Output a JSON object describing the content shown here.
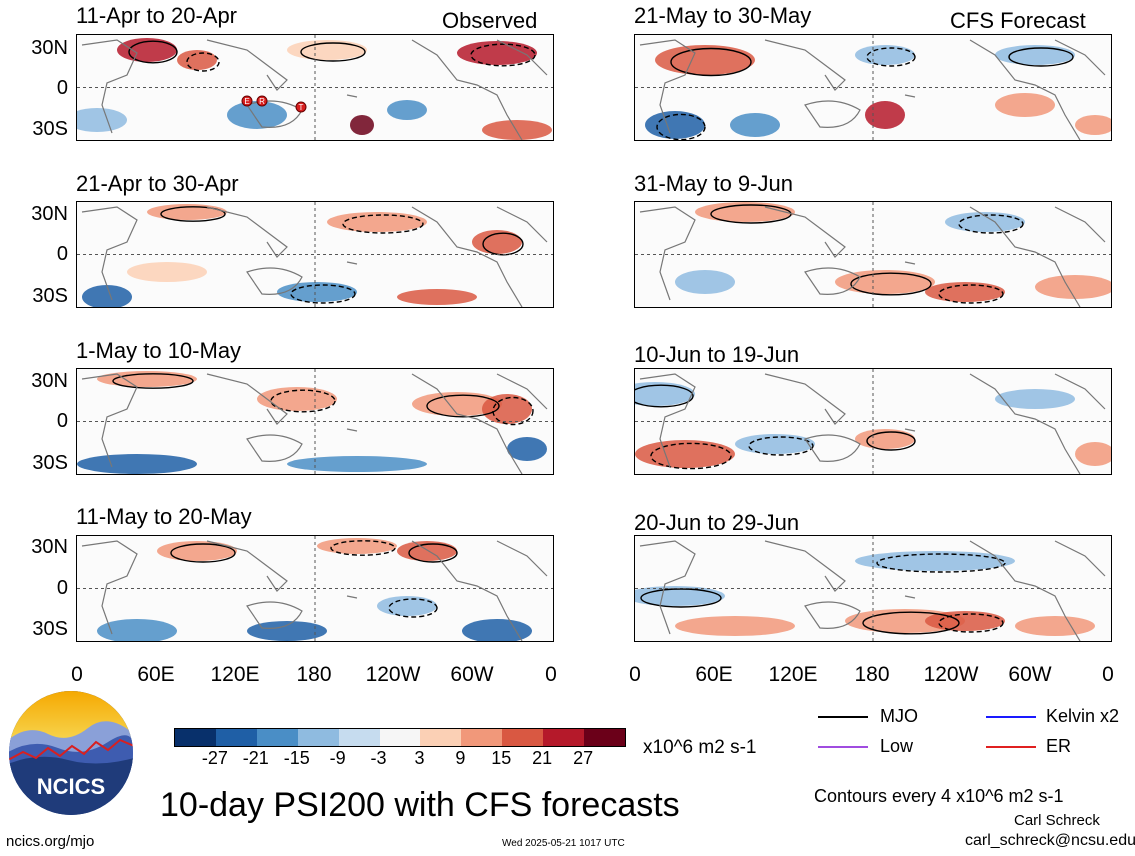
{
  "chart_data": {
    "type": "heatmap",
    "title": "10-day PSI200 with CFS forecasts",
    "units": "x10^6 m2 s-1",
    "contour_note": "Contours every 4 x10^6 m2 s-1",
    "columns": [
      {
        "tag": "Observed",
        "panels": [
          "11-Apr to 20-Apr",
          "21-Apr to 30-Apr",
          "1-May to 10-May",
          "11-May to 20-May"
        ]
      },
      {
        "tag": "CFS Forecast",
        "panels": [
          "21-May to 30-May",
          "31-May to 9-Jun",
          "10-Jun to 19-Jun",
          "20-Jun to 29-Jun"
        ]
      }
    ],
    "lat_ticks": [
      "30N",
      "0",
      "30S"
    ],
    "lon_ticks": [
      "0",
      "60E",
      "120E",
      "180",
      "120W",
      "60W",
      "0"
    ],
    "colorbar": {
      "labels": [
        "-27",
        "-21",
        "-15",
        "-9",
        "-3",
        "3",
        "9",
        "15",
        "21",
        "27"
      ],
      "colors": [
        "#08306b",
        "#1f5fa6",
        "#4a8ec6",
        "#8fbbe0",
        "#c6dcef",
        "#f6f6f6",
        "#fbd0b5",
        "#f1987a",
        "#d95842",
        "#b5192a",
        "#6b0019"
      ]
    },
    "legend": [
      {
        "label": "MJO",
        "color": "#000000"
      },
      {
        "label": "Kelvin x2",
        "color": "#1a1aff"
      },
      {
        "label": "Low",
        "color": "#a04ce0"
      },
      {
        "label": "ER",
        "color": "#e02020"
      }
    ],
    "storm_markers": [
      "E",
      "R",
      "T"
    ]
  },
  "footer": {
    "logo_text": "NCICS",
    "site": "ncics.org/mjo",
    "timestamp": "Wed 2025-05-21 1017 UTC",
    "author": "Carl Schreck",
    "email": "carl_schreck@ncsu.edu"
  }
}
